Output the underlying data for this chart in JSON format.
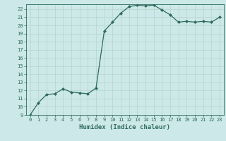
{
  "title": "",
  "xlabel": "Humidex (Indice chaleur)",
  "x": [
    0,
    1,
    2,
    3,
    4,
    5,
    6,
    7,
    8,
    9,
    10,
    11,
    12,
    13,
    14,
    15,
    16,
    17,
    18,
    19,
    20,
    21,
    22,
    23
  ],
  "y": [
    9.0,
    10.5,
    11.5,
    11.6,
    12.2,
    11.8,
    11.7,
    11.6,
    12.3,
    19.3,
    20.4,
    21.5,
    22.3,
    22.5,
    22.4,
    22.5,
    21.9,
    21.3,
    20.4,
    20.5,
    20.4,
    20.5,
    20.4,
    21.0
  ],
  "line_color": "#2e6b5e",
  "marker": "D",
  "marker_size": 2.0,
  "bg_color": "#cce8e8",
  "grid_color": "#b8d8d0",
  "ylim": [
    9,
    22.6
  ],
  "xlim": [
    -0.5,
    23.5
  ],
  "yticks": [
    9,
    10,
    11,
    12,
    13,
    14,
    15,
    16,
    17,
    18,
    19,
    20,
    21,
    22
  ],
  "xticks": [
    0,
    1,
    2,
    3,
    4,
    5,
    6,
    7,
    8,
    9,
    10,
    11,
    12,
    13,
    14,
    15,
    16,
    17,
    18,
    19,
    20,
    21,
    22,
    23
  ],
  "tick_fontsize": 5.0,
  "label_fontsize": 6.5,
  "linewidth": 0.9
}
